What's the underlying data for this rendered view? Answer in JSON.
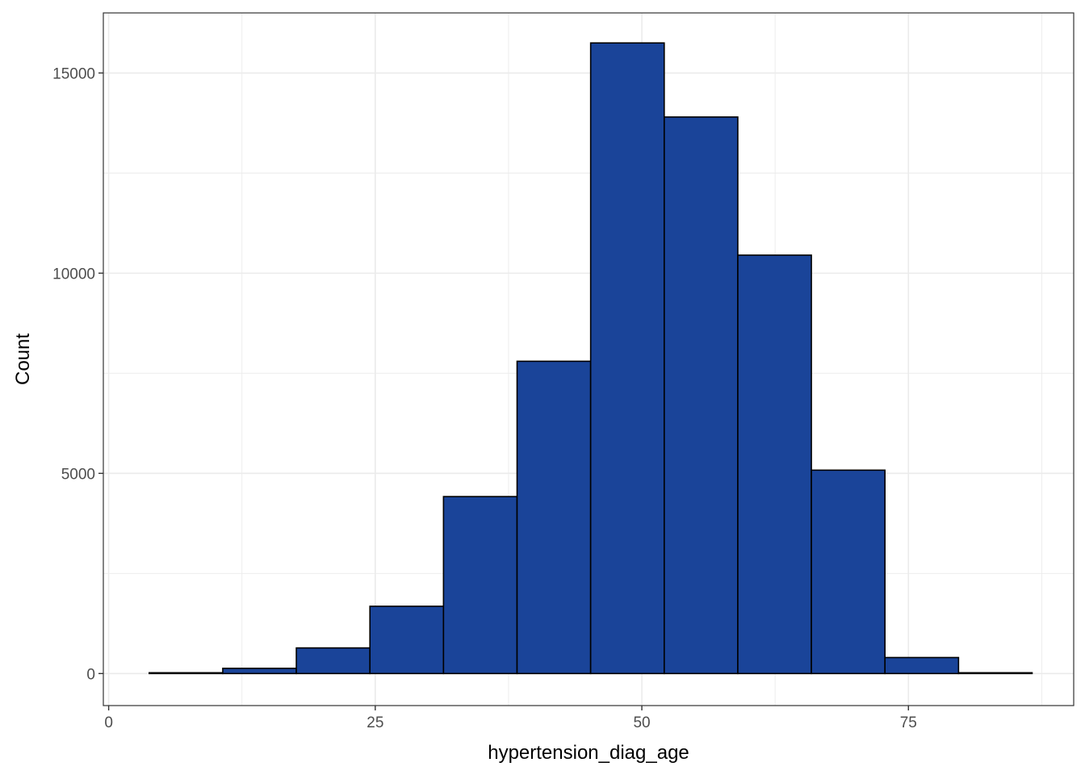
{
  "chart_data": {
    "type": "bar",
    "subtype": "histogram",
    "title": "",
    "xlabel": "hypertension_diag_age",
    "ylabel": "Count",
    "xlim": [
      -0.5,
      90.5
    ],
    "ylim": [
      -800,
      16500
    ],
    "x_ticks": [
      0,
      25,
      50,
      75
    ],
    "y_ticks": [
      0,
      5000,
      10000,
      15000
    ],
    "x_minor_ticks": [
      12.5,
      37.5,
      62.5,
      87.5
    ],
    "y_minor_ticks": [
      2500,
      7500,
      12500
    ],
    "grid": true,
    "bin_edges": [
      3.8,
      10.7,
      17.6,
      24.5,
      31.4,
      38.3,
      45.2,
      52.1,
      59.0,
      65.9,
      72.8,
      79.7,
      86.6
    ],
    "values": [
      20,
      130,
      640,
      1680,
      4420,
      7800,
      15750,
      13900,
      10450,
      5080,
      400,
      20
    ],
    "bar_fill": "#1a4499",
    "bar_stroke": "#000000",
    "grid_color": "#ebebeb",
    "panel_border_color": "#333333"
  }
}
